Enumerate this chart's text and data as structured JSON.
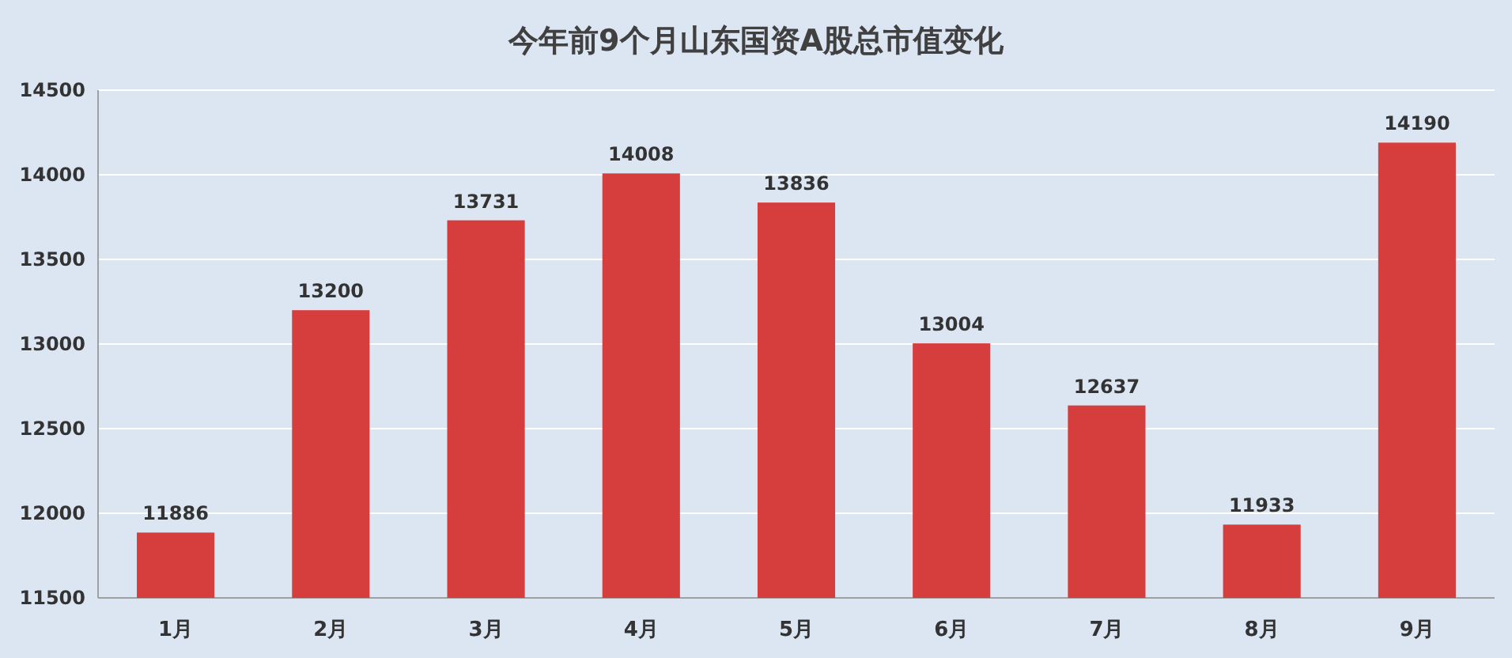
{
  "chart_data": {
    "type": "bar",
    "title": "今年前9个月山东国资A股总市值变化",
    "categories": [
      "1月",
      "2月",
      "3月",
      "4月",
      "5月",
      "6月",
      "7月",
      "8月",
      "9月"
    ],
    "values": [
      11886,
      13200,
      13731,
      14008,
      13836,
      13004,
      12637,
      11933,
      14190
    ],
    "color": "#d63d3d",
    "ylim": [
      11500,
      14500
    ],
    "yticks": [
      11500,
      12000,
      12500,
      13000,
      13500,
      14000,
      14500
    ],
    "grid": "y",
    "data_labels": true
  }
}
